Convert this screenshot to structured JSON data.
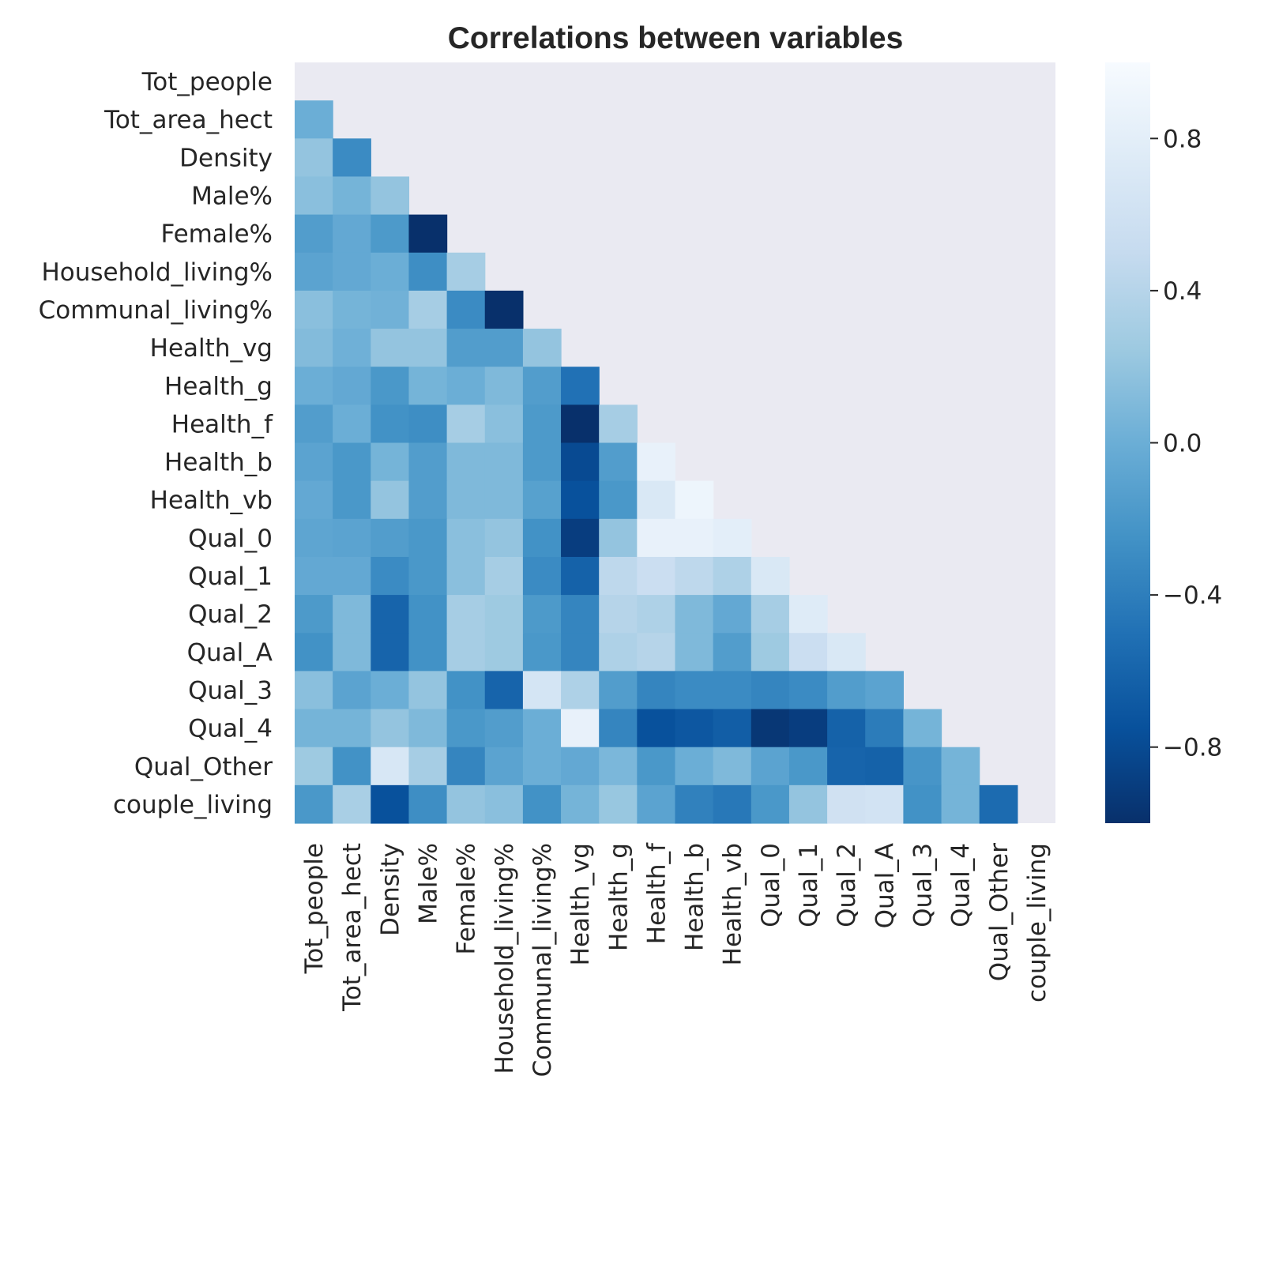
{
  "chart_data": {
    "type": "heatmap",
    "title": "Correlations between variables",
    "mask": "upper-triangle-including-diagonal",
    "colormap": "Blues_r",
    "background_color": "#eaeaf2",
    "variables": [
      "Tot_people",
      "Tot_area_hect",
      "Density",
      "Male%",
      "Female%",
      "Household_living%",
      "Communal_living%",
      "Health_vg",
      "Health_g",
      "Health_f",
      "Health_b",
      "Health_vb",
      "Qual_0",
      "Qual_1",
      "Qual_2",
      "Qual_A",
      "Qual_3",
      "Qual_4",
      "Qual_Other",
      "couple_living"
    ],
    "value_range": [
      -1,
      1
    ],
    "colorbar_ticks": [
      {
        "value": 0.8,
        "label": "0.8"
      },
      {
        "value": 0.4,
        "label": "0.4"
      },
      {
        "value": 0.0,
        "label": "0.0"
      },
      {
        "value": -0.4,
        "label": "−0.4"
      },
      {
        "value": -0.8,
        "label": "−0.8"
      }
    ],
    "lower_triangle_values": [
      [],
      [
        0.0
      ],
      [
        0.2,
        -0.3
      ],
      [
        0.15,
        0.05,
        0.2
      ],
      [
        -0.15,
        -0.05,
        -0.18,
        -1.0
      ],
      [
        -0.1,
        -0.05,
        0.0,
        -0.28,
        0.3
      ],
      [
        0.15,
        0.05,
        0.03,
        0.3,
        -0.3,
        -1.0
      ],
      [
        0.12,
        0.02,
        0.2,
        0.2,
        -0.15,
        -0.15,
        0.2
      ],
      [
        0.0,
        -0.05,
        -0.2,
        0.05,
        0.0,
        0.1,
        -0.15,
        -0.5
      ],
      [
        -0.15,
        0.0,
        -0.25,
        -0.28,
        0.3,
        0.15,
        -0.18,
        -1.0,
        0.3
      ],
      [
        -0.1,
        -0.2,
        0.05,
        -0.15,
        0.1,
        0.1,
        -0.18,
        -0.8,
        -0.15,
        0.85
      ],
      [
        -0.05,
        -0.2,
        0.2,
        -0.15,
        0.1,
        0.1,
        -0.12,
        -0.75,
        -0.2,
        0.7,
        0.9
      ],
      [
        -0.08,
        -0.1,
        -0.15,
        -0.2,
        0.15,
        0.2,
        -0.25,
        -0.9,
        0.2,
        0.85,
        0.85,
        0.8
      ],
      [
        -0.05,
        -0.05,
        -0.3,
        -0.2,
        0.15,
        0.3,
        -0.3,
        -0.62,
        0.45,
        0.55,
        0.45,
        0.35,
        0.7
      ],
      [
        -0.18,
        0.1,
        -0.6,
        -0.25,
        0.3,
        0.25,
        -0.18,
        -0.35,
        0.4,
        0.35,
        0.1,
        -0.05,
        0.3,
        0.75
      ],
      [
        -0.25,
        0.1,
        -0.6,
        -0.25,
        0.3,
        0.25,
        -0.2,
        -0.35,
        0.35,
        0.4,
        0.1,
        -0.15,
        0.25,
        0.55,
        0.7
      ],
      [
        0.15,
        -0.1,
        0.0,
        0.2,
        -0.25,
        -0.6,
        0.65,
        0.35,
        -0.15,
        -0.35,
        -0.3,
        -0.3,
        -0.35,
        -0.3,
        -0.15,
        -0.1
      ],
      [
        0.05,
        0.05,
        0.2,
        0.1,
        -0.2,
        -0.15,
        0.0,
        0.85,
        -0.35,
        -0.75,
        -0.7,
        -0.65,
        -0.95,
        -0.9,
        -0.62,
        -0.42,
        0.05
      ],
      [
        0.25,
        -0.25,
        0.68,
        0.3,
        -0.35,
        -0.1,
        0.0,
        -0.05,
        0.08,
        -0.2,
        0.0,
        0.1,
        -0.1,
        -0.2,
        -0.6,
        -0.62,
        -0.22,
        0.05
      ],
      [
        -0.2,
        0.32,
        -0.75,
        -0.28,
        0.2,
        0.15,
        -0.25,
        0.05,
        0.22,
        -0.1,
        -0.38,
        -0.45,
        -0.2,
        0.2,
        0.6,
        0.62,
        -0.25,
        0.05,
        -0.55
      ]
    ]
  }
}
